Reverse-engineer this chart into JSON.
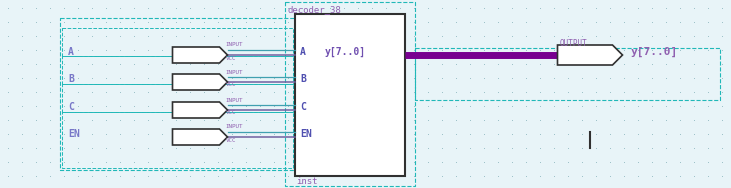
{
  "bg_color": "#e8f4f8",
  "dot_color": "#90b8c0",
  "fig_w": 7.31,
  "fig_h": 1.88,
  "dpi": 100,
  "border_color": "#20b8b8",
  "input_labels": [
    "A",
    "B",
    "C",
    "EN"
  ],
  "input_label_color": "#7878c8",
  "decoder_label": "decoder_38",
  "decoder_label_color": "#9060b0",
  "decoder_ports_left": [
    "A",
    "B",
    "C",
    "EN"
  ],
  "decoder_port_label_color": "#5050b0",
  "decoder_bus_label": "y[7..0]",
  "decoder_bus_label_color": "#7050b0",
  "output_label": "y[7..0]",
  "output_label_color": "#9060b0",
  "output_type_label": "OUTPUT",
  "output_type_color": "#9060b0",
  "inst_label": "inst",
  "inst_label_color": "#9060b0",
  "input_type_label": "INPUT",
  "input_type_label2": "VCC",
  "input_type_color": "#9060b0",
  "wire_color_single": "#7060a0",
  "wire_color_bus": "#780090",
  "wire_color_teal": "#40a0b0",
  "box_outline": "#303030",
  "cursor_color": "#303030"
}
